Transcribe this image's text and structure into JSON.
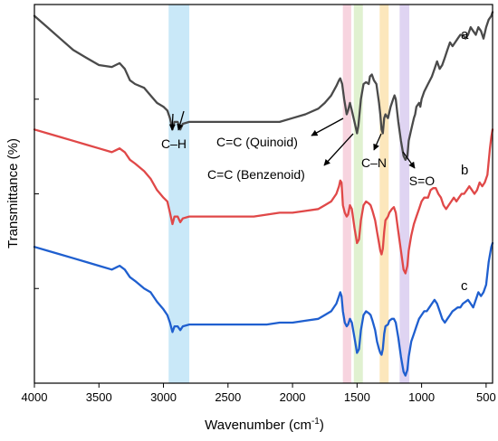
{
  "chart_data": {
    "type": "line",
    "xlabel_main": "Wavenumber (cm",
    "xlabel_sup": "-1",
    "xlabel_close": ")",
    "ylabel": "Transmittance (%)",
    "xlim": [
      4000,
      450
    ],
    "x_ticks": [
      "4000",
      "3500",
      "3000",
      "2500",
      "2000",
      "1500",
      "1000",
      "500"
    ],
    "y_ticks_count": 4,
    "grid": false,
    "bands": [
      {
        "from": 2960,
        "to": 2800,
        "color": "#bfe4f7"
      },
      {
        "from": 1610,
        "to": 1545,
        "color": "#f6cdd9"
      },
      {
        "from": 1525,
        "to": 1455,
        "color": "#dbeec8"
      },
      {
        "from": 1325,
        "to": 1255,
        "color": "#fbe3b0"
      },
      {
        "from": 1170,
        "to": 1095,
        "color": "#d9cdf0"
      }
    ],
    "annotations": [
      {
        "id": "ch",
        "text": "C–H"
      },
      {
        "id": "quinoid",
        "text": "C=C (Quinoid)"
      },
      {
        "id": "benzenoid",
        "text": "C=C (Benzenoid)"
      },
      {
        "id": "cn",
        "text": "C–N"
      },
      {
        "id": "so",
        "text": "S=O"
      }
    ],
    "series": [
      {
        "name": "a",
        "color": "#4a4a4a",
        "points": [
          [
            4000,
            97
          ],
          [
            3900,
            94
          ],
          [
            3800,
            91
          ],
          [
            3700,
            88
          ],
          [
            3600,
            86
          ],
          [
            3500,
            84
          ],
          [
            3400,
            83.5
          ],
          [
            3340,
            84.5
          ],
          [
            3300,
            83
          ],
          [
            3260,
            80
          ],
          [
            3220,
            79
          ],
          [
            3150,
            78
          ],
          [
            3100,
            76
          ],
          [
            3050,
            74
          ],
          [
            3000,
            73
          ],
          [
            2970,
            72
          ],
          [
            2950,
            70
          ],
          [
            2930,
            67
          ],
          [
            2915,
            69
          ],
          [
            2890,
            69
          ],
          [
            2870,
            67
          ],
          [
            2850,
            68.5
          ],
          [
            2800,
            69
          ],
          [
            2700,
            69
          ],
          [
            2600,
            69
          ],
          [
            2500,
            69
          ],
          [
            2400,
            69
          ],
          [
            2300,
            69
          ],
          [
            2200,
            69
          ],
          [
            2100,
            69
          ],
          [
            2000,
            70
          ],
          [
            1900,
            71
          ],
          [
            1800,
            72.5
          ],
          [
            1750,
            74
          ],
          [
            1700,
            76
          ],
          [
            1660,
            78.5
          ],
          [
            1640,
            80
          ],
          [
            1630,
            80.5
          ],
          [
            1615,
            79
          ],
          [
            1600,
            75
          ],
          [
            1580,
            71
          ],
          [
            1570,
            72
          ],
          [
            1555,
            74
          ],
          [
            1540,
            72
          ],
          [
            1520,
            69
          ],
          [
            1500,
            66
          ],
          [
            1490,
            68
          ],
          [
            1470,
            75
          ],
          [
            1450,
            79
          ],
          [
            1430,
            79.5
          ],
          [
            1410,
            79
          ],
          [
            1400,
            81
          ],
          [
            1385,
            81.5
          ],
          [
            1370,
            80
          ],
          [
            1350,
            79
          ],
          [
            1330,
            74
          ],
          [
            1320,
            71
          ],
          [
            1310,
            67
          ],
          [
            1300,
            66
          ],
          [
            1290,
            70
          ],
          [
            1280,
            71
          ],
          [
            1260,
            70
          ],
          [
            1240,
            73
          ],
          [
            1220,
            75
          ],
          [
            1210,
            76
          ],
          [
            1200,
            75
          ],
          [
            1180,
            69
          ],
          [
            1160,
            64
          ],
          [
            1140,
            60
          ],
          [
            1125,
            59
          ],
          [
            1110,
            60
          ],
          [
            1100,
            64
          ],
          [
            1080,
            67
          ],
          [
            1060,
            70
          ],
          [
            1050,
            71
          ],
          [
            1040,
            73
          ],
          [
            1020,
            74
          ],
          [
            1010,
            73
          ],
          [
            1000,
            75
          ],
          [
            980,
            77
          ],
          [
            950,
            79
          ],
          [
            920,
            81
          ],
          [
            900,
            83
          ],
          [
            880,
            85
          ],
          [
            860,
            83
          ],
          [
            840,
            84
          ],
          [
            820,
            86
          ],
          [
            800,
            88
          ],
          [
            780,
            90
          ],
          [
            760,
            89
          ],
          [
            740,
            90
          ],
          [
            720,
            91
          ],
          [
            700,
            92
          ],
          [
            680,
            92
          ],
          [
            660,
            91
          ],
          [
            640,
            92
          ],
          [
            620,
            94
          ],
          [
            600,
            93
          ],
          [
            580,
            92
          ],
          [
            560,
            94
          ],
          [
            540,
            93
          ],
          [
            520,
            91
          ],
          [
            500,
            94
          ],
          [
            480,
            96
          ],
          [
            460,
            97
          ],
          [
            450,
            98
          ]
        ]
      },
      {
        "name": "b",
        "color": "#e04848",
        "points": [
          [
            4000,
            67
          ],
          [
            3900,
            66
          ],
          [
            3800,
            65
          ],
          [
            3700,
            64
          ],
          [
            3600,
            63
          ],
          [
            3500,
            62
          ],
          [
            3400,
            61
          ],
          [
            3340,
            62
          ],
          [
            3300,
            61
          ],
          [
            3260,
            59
          ],
          [
            3220,
            58
          ],
          [
            3150,
            56
          ],
          [
            3100,
            54
          ],
          [
            3050,
            51
          ],
          [
            3000,
            49
          ],
          [
            2970,
            48
          ],
          [
            2950,
            45
          ],
          [
            2930,
            42
          ],
          [
            2915,
            44
          ],
          [
            2890,
            44
          ],
          [
            2870,
            42.5
          ],
          [
            2850,
            43.5
          ],
          [
            2800,
            44
          ],
          [
            2700,
            44
          ],
          [
            2600,
            44
          ],
          [
            2500,
            44
          ],
          [
            2400,
            44
          ],
          [
            2300,
            44
          ],
          [
            2200,
            44.5
          ],
          [
            2100,
            45
          ],
          [
            2000,
            45
          ],
          [
            1900,
            45.5
          ],
          [
            1800,
            46
          ],
          [
            1750,
            47
          ],
          [
            1700,
            48
          ],
          [
            1660,
            50
          ],
          [
            1640,
            52
          ],
          [
            1630,
            53.5
          ],
          [
            1620,
            53
          ],
          [
            1610,
            47
          ],
          [
            1595,
            45
          ],
          [
            1580,
            44
          ],
          [
            1570,
            44.5
          ],
          [
            1555,
            47
          ],
          [
            1540,
            46
          ],
          [
            1520,
            41
          ],
          [
            1500,
            37
          ],
          [
            1485,
            38
          ],
          [
            1470,
            43
          ],
          [
            1450,
            47
          ],
          [
            1430,
            48
          ],
          [
            1410,
            47.5
          ],
          [
            1395,
            47
          ],
          [
            1380,
            45.5
          ],
          [
            1360,
            43
          ],
          [
            1345,
            40
          ],
          [
            1330,
            37
          ],
          [
            1320,
            35
          ],
          [
            1310,
            34
          ],
          [
            1300,
            35.5
          ],
          [
            1290,
            40
          ],
          [
            1280,
            43
          ],
          [
            1260,
            44
          ],
          [
            1250,
            45
          ],
          [
            1230,
            46
          ],
          [
            1215,
            46.5
          ],
          [
            1200,
            45
          ],
          [
            1180,
            40
          ],
          [
            1160,
            35
          ],
          [
            1140,
            30
          ],
          [
            1125,
            29
          ],
          [
            1110,
            31
          ],
          [
            1100,
            35
          ],
          [
            1080,
            39
          ],
          [
            1060,
            42
          ],
          [
            1040,
            44
          ],
          [
            1020,
            46
          ],
          [
            1000,
            48
          ],
          [
            980,
            49
          ],
          [
            950,
            49
          ],
          [
            930,
            51
          ],
          [
            910,
            51.5
          ],
          [
            890,
            51.5
          ],
          [
            870,
            50
          ],
          [
            850,
            49
          ],
          [
            830,
            47
          ],
          [
            810,
            46
          ],
          [
            790,
            47
          ],
          [
            770,
            48
          ],
          [
            750,
            49
          ],
          [
            730,
            48
          ],
          [
            710,
            49
          ],
          [
            690,
            50
          ],
          [
            670,
            50
          ],
          [
            650,
            51
          ],
          [
            630,
            52
          ],
          [
            610,
            51
          ],
          [
            590,
            50
          ],
          [
            570,
            51
          ],
          [
            550,
            53
          ],
          [
            530,
            52
          ],
          [
            510,
            53
          ],
          [
            490,
            55
          ],
          [
            470,
            62
          ],
          [
            460,
            65
          ],
          [
            450,
            67
          ]
        ]
      },
      {
        "name": "c",
        "color": "#1f5fcf",
        "points": [
          [
            4000,
            36
          ],
          [
            3900,
            35
          ],
          [
            3800,
            34
          ],
          [
            3700,
            33
          ],
          [
            3600,
            32
          ],
          [
            3500,
            31
          ],
          [
            3400,
            30
          ],
          [
            3340,
            31
          ],
          [
            3300,
            30
          ],
          [
            3260,
            28
          ],
          [
            3220,
            27
          ],
          [
            3150,
            25
          ],
          [
            3100,
            24
          ],
          [
            3050,
            21.5
          ],
          [
            3000,
            19.5
          ],
          [
            2970,
            18
          ],
          [
            2950,
            16
          ],
          [
            2930,
            13.5
          ],
          [
            2915,
            15
          ],
          [
            2890,
            15
          ],
          [
            2870,
            14
          ],
          [
            2850,
            15
          ],
          [
            2800,
            15.5
          ],
          [
            2700,
            15.5
          ],
          [
            2600,
            15.5
          ],
          [
            2500,
            15.5
          ],
          [
            2400,
            15.5
          ],
          [
            2300,
            15.5
          ],
          [
            2200,
            15.5
          ],
          [
            2100,
            16
          ],
          [
            2000,
            16
          ],
          [
            1900,
            16.5
          ],
          [
            1800,
            17
          ],
          [
            1750,
            18
          ],
          [
            1700,
            19
          ],
          [
            1660,
            21
          ],
          [
            1640,
            23
          ],
          [
            1630,
            24
          ],
          [
            1620,
            23
          ],
          [
            1610,
            19
          ],
          [
            1595,
            16
          ],
          [
            1580,
            15
          ],
          [
            1570,
            15.5
          ],
          [
            1555,
            17
          ],
          [
            1540,
            16
          ],
          [
            1520,
            12
          ],
          [
            1500,
            8
          ],
          [
            1485,
            9
          ],
          [
            1470,
            14
          ],
          [
            1450,
            18
          ],
          [
            1430,
            19
          ],
          [
            1410,
            18.5
          ],
          [
            1395,
            18
          ],
          [
            1380,
            16.5
          ],
          [
            1360,
            14
          ],
          [
            1345,
            11
          ],
          [
            1330,
            9
          ],
          [
            1320,
            8
          ],
          [
            1310,
            7.5
          ],
          [
            1300,
            9
          ],
          [
            1290,
            13
          ],
          [
            1280,
            15
          ],
          [
            1260,
            15.5
          ],
          [
            1250,
            16.5
          ],
          [
            1230,
            17
          ],
          [
            1215,
            17
          ],
          [
            1200,
            16
          ],
          [
            1180,
            12
          ],
          [
            1160,
            7
          ],
          [
            1140,
            3
          ],
          [
            1125,
            2
          ],
          [
            1110,
            3.5
          ],
          [
            1100,
            7
          ],
          [
            1080,
            11
          ],
          [
            1060,
            13
          ],
          [
            1040,
            15
          ],
          [
            1020,
            17
          ],
          [
            1000,
            18
          ],
          [
            980,
            19
          ],
          [
            960,
            19
          ],
          [
            940,
            20
          ],
          [
            920,
            21
          ],
          [
            900,
            22
          ],
          [
            880,
            21
          ],
          [
            860,
            19
          ],
          [
            840,
            17
          ],
          [
            820,
            16
          ],
          [
            800,
            17
          ],
          [
            780,
            18
          ],
          [
            760,
            19
          ],
          [
            740,
            19.5
          ],
          [
            720,
            20
          ],
          [
            700,
            20
          ],
          [
            680,
            21
          ],
          [
            660,
            21.5
          ],
          [
            640,
            22
          ],
          [
            620,
            21
          ],
          [
            600,
            20
          ],
          [
            580,
            22
          ],
          [
            560,
            24
          ],
          [
            540,
            23
          ],
          [
            520,
            24
          ],
          [
            500,
            26
          ],
          [
            480,
            32
          ],
          [
            460,
            36
          ],
          [
            450,
            37
          ]
        ]
      }
    ]
  }
}
